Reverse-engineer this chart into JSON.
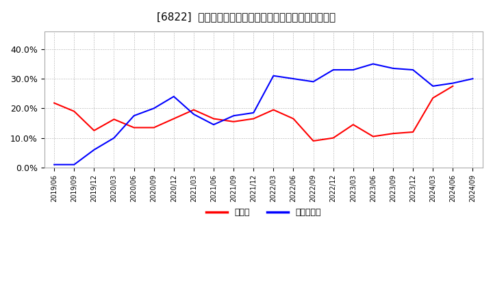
{
  "title": "[6822]  現預金、有利子負債の総資産に対する比率の推移",
  "x_labels": [
    "2019/06",
    "2019/09",
    "2019/12",
    "2020/03",
    "2020/06",
    "2020/09",
    "2020/12",
    "2021/03",
    "2021/06",
    "2021/09",
    "2021/12",
    "2022/03",
    "2022/06",
    "2022/09",
    "2022/12",
    "2023/03",
    "2023/06",
    "2023/09",
    "2023/12",
    "2024/03",
    "2024/06",
    "2024/09"
  ],
  "cash": [
    0.218,
    0.19,
    0.125,
    0.163,
    0.135,
    0.135,
    0.165,
    0.195,
    0.165,
    0.155,
    0.165,
    0.195,
    0.165,
    0.09,
    0.1,
    0.145,
    0.105,
    0.115,
    0.12,
    0.235,
    0.275,
    null
  ],
  "debt": [
    0.01,
    0.01,
    0.06,
    0.1,
    0.175,
    0.2,
    0.24,
    0.18,
    0.145,
    0.175,
    0.185,
    0.31,
    0.3,
    0.29,
    0.33,
    0.33,
    0.35,
    0.335,
    0.33,
    0.275,
    0.285,
    0.3
  ],
  "cash_color": "#ff0000",
  "debt_color": "#0000ff",
  "bg_color": "#ffffff",
  "plot_bg_color": "#ffffff",
  "grid_color": "#aaaaaa",
  "ylim": [
    0.0,
    0.46
  ],
  "yticks": [
    0.0,
    0.1,
    0.2,
    0.3,
    0.4
  ],
  "legend_cash": "現預金",
  "legend_debt": "有利子負債"
}
